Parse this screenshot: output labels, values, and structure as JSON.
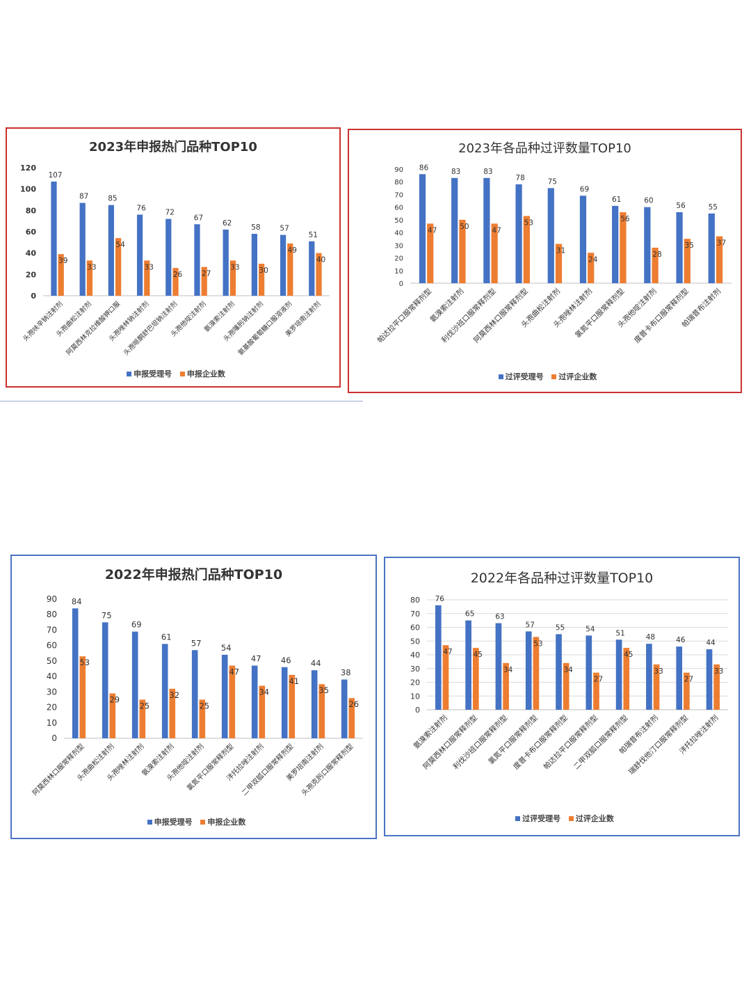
{
  "colors": {
    "series1": "#4472c4",
    "series2": "#ed7d31",
    "grid": "#d9d9d9"
  },
  "chart_data": [
    {
      "type": "bar",
      "title": "2023年申报热门品种TOP10",
      "categories": [
        "头孢呋辛钠注射剂",
        "头孢曲松注射剂",
        "阿莫西林克拉维酸钾口服",
        "头孢唑林钠注射剂",
        "头孢哌酮舒巴坦钠注射剂",
        "头孢他啶注射剂",
        "氨溴索注射剂",
        "头孢噻肟钠注射剂",
        "氨基酸葡萄糖口服溶液剂",
        "美罗培南注射剂"
      ],
      "series": [
        {
          "name": "申报受理号",
          "values": [
            107,
            87,
            85,
            76,
            72,
            67,
            62,
            58,
            57,
            51
          ]
        },
        {
          "name": "申报企业数",
          "values": [
            39,
            33,
            54,
            33,
            26,
            27,
            33,
            30,
            49,
            40
          ]
        }
      ],
      "ylim": [
        0,
        120
      ],
      "yticks": [
        0,
        20,
        40,
        60,
        80,
        100,
        120
      ],
      "grid": false,
      "legend": "bottom"
    },
    {
      "type": "bar",
      "title": "2023年各品种过评数量TOP10",
      "categories": [
        "帕达拉平口服常释剂型",
        "氨溴索注射剂",
        "利伐沙班口服常释剂型",
        "阿莫西林口服常释剂型",
        "头孢曲松注射剂",
        "头孢唑林注射剂",
        "氯氮平口服常释剂型",
        "头孢他啶注射剂",
        "度普卡布口服常释剂型",
        "帕瑞昔布注射剂"
      ],
      "series": [
        {
          "name": "过评受理号",
          "values": [
            86,
            83,
            83,
            78,
            75,
            69,
            61,
            60,
            56,
            55
          ]
        },
        {
          "name": "过评企业数",
          "values": [
            47,
            50,
            47,
            53,
            31,
            24,
            56,
            28,
            35,
            37
          ]
        }
      ],
      "ylim": [
        0,
        90
      ],
      "yticks": [
        0,
        10,
        20,
        30,
        40,
        50,
        60,
        70,
        80,
        90
      ],
      "grid": false,
      "legend": "bottom"
    },
    {
      "type": "bar",
      "title": "2022年申报热门品种TOP10",
      "categories": [
        "阿莫西林口服常释剂型",
        "头孢曲松注射剂",
        "头孢唑林注射剂",
        "氨溴索注射剂",
        "头孢他啶注射剂",
        "氯氮平口服常释剂型",
        "泮托拉唑注射剂",
        "二甲双胍口服常释剂型",
        "美罗培南注射剂",
        "头孢克肟口服常释剂型"
      ],
      "series": [
        {
          "name": "申报受理号",
          "values": [
            84,
            75,
            69,
            61,
            57,
            54,
            47,
            46,
            44,
            38
          ]
        },
        {
          "name": "申报企业数",
          "values": [
            53,
            29,
            25,
            32,
            25,
            47,
            34,
            41,
            35,
            26
          ]
        }
      ],
      "ylim": [
        0,
        90
      ],
      "yticks": [
        0,
        10,
        20,
        30,
        40,
        50,
        60,
        70,
        80,
        90
      ],
      "grid": false,
      "legend": "bottom"
    },
    {
      "type": "bar",
      "title": "2022年各品种过评数量TOP10",
      "categories": [
        "氨溴索注射剂",
        "阿莫西林口服常释剂型",
        "利伐沙班口服常释剂型",
        "氯氮平口服常释剂型",
        "度普卡布口服常释剂型",
        "帕达拉平口服常释剂型",
        "二甲双胍口服常释剂型",
        "帕瑞昔布注射剂",
        "瑞舒伐他汀口服常释剂型",
        "泮托拉唑注射剂"
      ],
      "series": [
        {
          "name": "过评受理号",
          "values": [
            76,
            65,
            63,
            57,
            55,
            54,
            51,
            48,
            46,
            44
          ]
        },
        {
          "name": "过评企业数",
          "values": [
            47,
            45,
            34,
            53,
            34,
            27,
            45,
            33,
            27,
            33
          ]
        }
      ],
      "ylim": [
        0,
        80
      ],
      "yticks": [
        0,
        10,
        20,
        30,
        40,
        50,
        60,
        70,
        80
      ],
      "grid": true,
      "legend": "bottom"
    }
  ]
}
